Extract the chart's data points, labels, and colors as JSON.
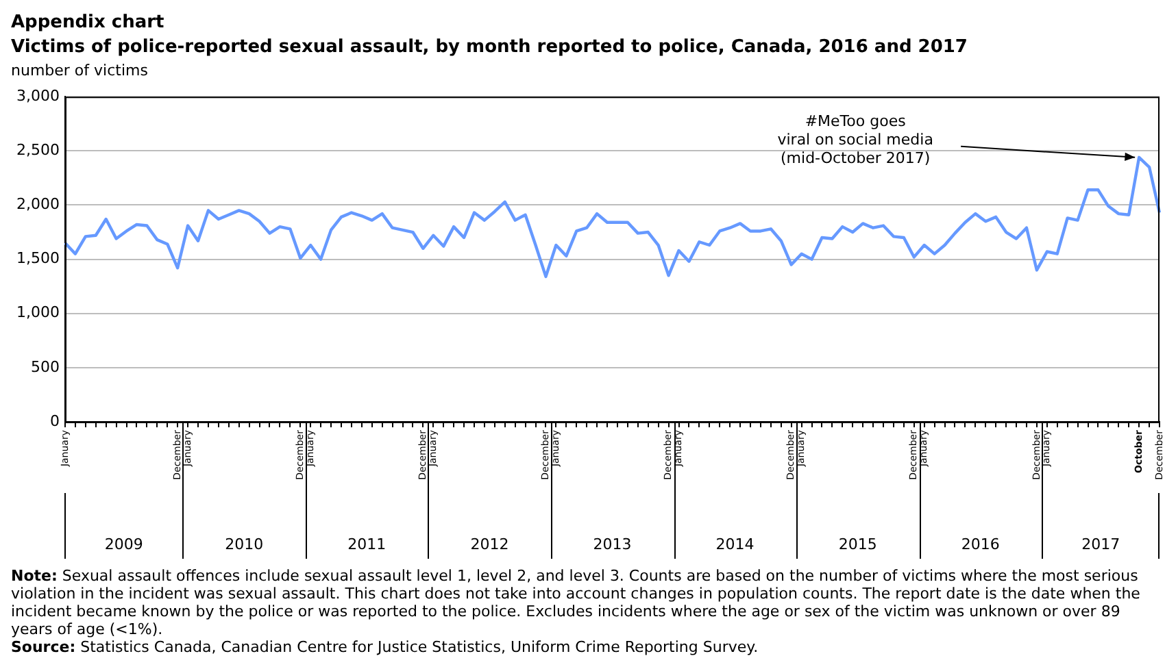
{
  "chart_data": {
    "type": "line",
    "title": "Appendix chart",
    "subtitle": "Victims of police-reported sexual assault, by month reported to police, Canada, 2016 and 2017",
    "ylabel": "number of victims",
    "categories": [
      "January",
      null,
      null,
      null,
      null,
      null,
      null,
      null,
      null,
      null,
      null,
      "December",
      "January",
      null,
      null,
      null,
      null,
      null,
      null,
      null,
      null,
      null,
      null,
      "December",
      "January",
      null,
      null,
      null,
      null,
      null,
      null,
      null,
      null,
      null,
      null,
      "December",
      "January",
      null,
      null,
      null,
      null,
      null,
      null,
      null,
      null,
      null,
      null,
      "December",
      "January",
      null,
      null,
      null,
      null,
      null,
      null,
      null,
      null,
      null,
      null,
      "December",
      "January",
      null,
      null,
      null,
      null,
      null,
      null,
      null,
      null,
      null,
      null,
      "December",
      "January",
      null,
      null,
      null,
      null,
      null,
      null,
      null,
      null,
      null,
      null,
      "December",
      "January",
      null,
      null,
      null,
      null,
      null,
      null,
      null,
      null,
      null,
      null,
      "December",
      "January",
      null,
      null,
      null,
      null,
      null,
      null,
      null,
      null,
      "October",
      null,
      "December"
    ],
    "series": [
      {
        "color": "#6699ff",
        "values": [
          1650,
          1550,
          1710,
          1720,
          1870,
          1690,
          1760,
          1820,
          1810,
          1680,
          1640,
          1420,
          1810,
          1670,
          1950,
          1870,
          1910,
          1950,
          1920,
          1850,
          1740,
          1800,
          1780,
          1510,
          1630,
          1500,
          1770,
          1890,
          1930,
          1900,
          1860,
          1920,
          1790,
          1770,
          1750,
          1600,
          1720,
          1620,
          1800,
          1700,
          1930,
          1860,
          1940,
          2030,
          1860,
          1910,
          1630,
          1340,
          1630,
          1530,
          1760,
          1790,
          1920,
          1840,
          1840,
          1840,
          1740,
          1750,
          1630,
          1350,
          1580,
          1480,
          1660,
          1630,
          1760,
          1790,
          1830,
          1760,
          1760,
          1780,
          1670,
          1450,
          1550,
          1500,
          1700,
          1690,
          1800,
          1750,
          1830,
          1790,
          1810,
          1710,
          1700,
          1520,
          1630,
          1550,
          1630,
          1740,
          1840,
          1920,
          1850,
          1890,
          1750,
          1690,
          1790,
          1400,
          1570,
          1550,
          1880,
          1860,
          2140,
          2140,
          1990,
          1920,
          1910,
          2440,
          2350,
          1930
        ]
      }
    ],
    "ylim": [
      0,
      3000
    ],
    "yticks": [
      0,
      500,
      {
        "value": 1000,
        "label": "1,000"
      },
      {
        "value": 1500,
        "label": "1,500"
      },
      {
        "value": 2000,
        "label": "2,000"
      },
      {
        "value": 2500,
        "label": "2,500"
      },
      {
        "value": 3000,
        "label": "3,000"
      }
    ],
    "grid": "y",
    "legend": false,
    "marker": "none",
    "line_style": "solid",
    "annotations": [
      "#MeToo goes viral on social media (mid-October 2017)",
      "2009",
      "2010",
      "2011",
      "2012",
      "2013",
      "2014",
      "2015",
      "2016",
      "2017",
      "Note: Sexual assault offences include sexual assault level 1, level 2, and level 3. Counts are based on the number of victims where the most serious violation in the incident was sexual assault. This chart does not take into account changes in population counts. The report date is the date when the incident became known by the police or was reported to the police. Excludes incidents where the age or sex of the victim was unknown or over 89 years of age (<1%).",
      "Source: Statistics Canada, Canadian Centre for Justice Statistics, Uniform Crime Reporting Survey."
    ]
  }
}
